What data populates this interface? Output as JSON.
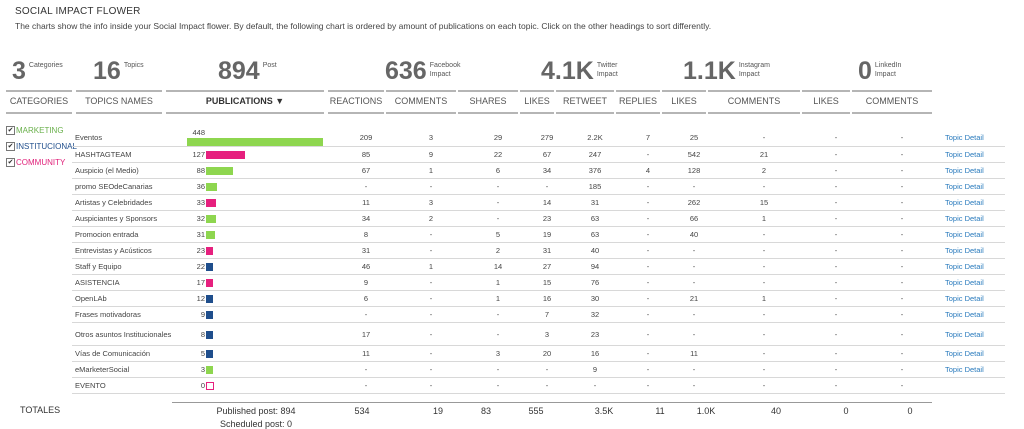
{
  "title": "SOCIAL IMPACT FLOWER",
  "subtitle": "The charts show the info inside your Social Impact flower. By default, the following chart is ordered by amount of publications on each topic. Click on the other headings to sort differently.",
  "stats": {
    "categories": {
      "num": "3",
      "label": "Categories"
    },
    "topics": {
      "num": "16",
      "label": "Topics"
    },
    "post": {
      "num": "894",
      "label": "Post"
    },
    "facebook": {
      "num": "636",
      "label": "Facebook Impact"
    },
    "twitter": {
      "num": "4.1K",
      "label": "Twitter Impact"
    },
    "instagram": {
      "num": "1.1K",
      "label": "Instagram Impact"
    },
    "linkedin": {
      "num": "0",
      "label": "LinkedIn Impact"
    }
  },
  "headers": {
    "categories": "CATEGORIES",
    "topics_names": "TOPICS NAMES",
    "publications": "PUBLICATIONS ▼",
    "reactions": "REACTIONS",
    "fb_comments": "COMMENTS",
    "shares": "SHARES",
    "tw_likes": "LIKES",
    "retweet": "RETWEET",
    "replies": "REPLIES",
    "ig_likes": "LIKES",
    "ig_comments": "COMMENTS",
    "li_likes": "LIKES",
    "li_comments": "COMMENTS"
  },
  "categories": [
    {
      "label": "MARKETING",
      "color": "#6ab04c",
      "checked": "✔"
    },
    {
      "label": "INSTITUCIONAL",
      "color": "#1f4e8c",
      "checked": "✔"
    },
    {
      "label": "COMMUNITY",
      "color": "#e0217a",
      "checked": "✔"
    }
  ],
  "colors": {
    "marketing": "#8ed64f",
    "institucional": "#1f4e8c",
    "community": "#e6207e",
    "link": "#2a7bbd"
  },
  "rows": [
    {
      "name": "Eventos",
      "pub": 448,
      "cat": "marketing",
      "reactions": "209",
      "comments": "3",
      "shares": "29",
      "tw_likes": "279",
      "retweet": "2.2K",
      "replies": "7",
      "ig_likes": "25",
      "ig_comments": "-",
      "li_likes": "-",
      "li_comments": "-",
      "link": "Topic Detail"
    },
    {
      "name": "HASHTAGTEAM",
      "pub": 127,
      "cat": "community",
      "reactions": "85",
      "comments": "9",
      "shares": "22",
      "tw_likes": "67",
      "retweet": "247",
      "replies": "-",
      "ig_likes": "542",
      "ig_comments": "21",
      "li_likes": "-",
      "li_comments": "-",
      "link": "Topic Detail"
    },
    {
      "name": "Auspicio (el Medio)",
      "pub": 88,
      "cat": "marketing",
      "reactions": "67",
      "comments": "1",
      "shares": "6",
      "tw_likes": "34",
      "retweet": "376",
      "replies": "4",
      "ig_likes": "128",
      "ig_comments": "2",
      "li_likes": "-",
      "li_comments": "-",
      "link": "Topic Detail"
    },
    {
      "name": "promo SEOdeCanarias",
      "pub": 36,
      "cat": "marketing",
      "reactions": "-",
      "comments": "-",
      "shares": "-",
      "tw_likes": "-",
      "retweet": "185",
      "replies": "-",
      "ig_likes": "-",
      "ig_comments": "-",
      "li_likes": "-",
      "li_comments": "-",
      "link": "Topic Detail"
    },
    {
      "name": "Artistas y Celebridades",
      "pub": 33,
      "cat": "community",
      "reactions": "11",
      "comments": "3",
      "shares": "-",
      "tw_likes": "14",
      "retweet": "31",
      "replies": "-",
      "ig_likes": "262",
      "ig_comments": "15",
      "li_likes": "-",
      "li_comments": "-",
      "link": "Topic Detail"
    },
    {
      "name": "Auspiciantes y Sponsors",
      "pub": 32,
      "cat": "marketing",
      "reactions": "34",
      "comments": "2",
      "shares": "-",
      "tw_likes": "23",
      "retweet": "63",
      "replies": "-",
      "ig_likes": "66",
      "ig_comments": "1",
      "li_likes": "-",
      "li_comments": "-",
      "link": "Topic Detail"
    },
    {
      "name": "Promocion entrada",
      "pub": 31,
      "cat": "marketing",
      "reactions": "8",
      "comments": "-",
      "shares": "5",
      "tw_likes": "19",
      "retweet": "63",
      "replies": "-",
      "ig_likes": "40",
      "ig_comments": "-",
      "li_likes": "-",
      "li_comments": "-",
      "link": "Topic Detail"
    },
    {
      "name": "Entrevistas y Acústicos",
      "pub": 23,
      "cat": "community",
      "reactions": "31",
      "comments": "-",
      "shares": "2",
      "tw_likes": "31",
      "retweet": "40",
      "replies": "-",
      "ig_likes": "-",
      "ig_comments": "-",
      "li_likes": "-",
      "li_comments": "-",
      "link": "Topic Detail"
    },
    {
      "name": "Staff y Equipo",
      "pub": 22,
      "cat": "institucional",
      "reactions": "46",
      "comments": "1",
      "shares": "14",
      "tw_likes": "27",
      "retweet": "94",
      "replies": "-",
      "ig_likes": "-",
      "ig_comments": "-",
      "li_likes": "-",
      "li_comments": "-",
      "link": "Topic Detail"
    },
    {
      "name": "ASISTENCIA",
      "pub": 17,
      "cat": "community",
      "reactions": "9",
      "comments": "-",
      "shares": "1",
      "tw_likes": "15",
      "retweet": "76",
      "replies": "-",
      "ig_likes": "-",
      "ig_comments": "-",
      "li_likes": "-",
      "li_comments": "-",
      "link": "Topic Detail"
    },
    {
      "name": "OpenLAb",
      "pub": 12,
      "cat": "institucional",
      "reactions": "6",
      "comments": "-",
      "shares": "1",
      "tw_likes": "16",
      "retweet": "30",
      "replies": "-",
      "ig_likes": "21",
      "ig_comments": "1",
      "li_likes": "-",
      "li_comments": "-",
      "link": "Topic Detail"
    },
    {
      "name": "Frases motivadoras",
      "pub": 9,
      "cat": "institucional",
      "reactions": "-",
      "comments": "-",
      "shares": "-",
      "tw_likes": "7",
      "retweet": "32",
      "replies": "-",
      "ig_likes": "-",
      "ig_comments": "-",
      "li_likes": "-",
      "li_comments": "-",
      "link": "Topic Detail"
    },
    {
      "name": "Otros asuntos Institucionales",
      "pub": 8,
      "cat": "institucional",
      "reactions": "17",
      "comments": "-",
      "shares": "-",
      "tw_likes": "3",
      "retweet": "23",
      "replies": "-",
      "ig_likes": "-",
      "ig_comments": "-",
      "li_likes": "-",
      "li_comments": "-",
      "link": "Topic Detail"
    },
    {
      "name": "Vías de Comunicación",
      "pub": 5,
      "cat": "institucional",
      "reactions": "11",
      "comments": "-",
      "shares": "3",
      "tw_likes": "20",
      "retweet": "16",
      "replies": "-",
      "ig_likes": "11",
      "ig_comments": "-",
      "li_likes": "-",
      "li_comments": "-",
      "link": "Topic Detail"
    },
    {
      "name": "eMarketerSocial",
      "pub": 3,
      "cat": "marketing",
      "reactions": "-",
      "comments": "-",
      "shares": "-",
      "tw_likes": "-",
      "retweet": "9",
      "replies": "-",
      "ig_likes": "-",
      "ig_comments": "-",
      "li_likes": "-",
      "li_comments": "-",
      "link": "Topic Detail"
    },
    {
      "name": "EVENTO",
      "pub": 0,
      "cat": "community",
      "reactions": "-",
      "comments": "-",
      "shares": "-",
      "tw_likes": "-",
      "retweet": "-",
      "replies": "-",
      "ig_likes": "-",
      "ig_comments": "-",
      "li_likes": "-",
      "li_comments": "-",
      "link": ""
    }
  ],
  "totals": {
    "label": "TOTALES",
    "published": "Published post: 894",
    "scheduled": "Scheduled post: 0",
    "reactions": "534",
    "comments": "19",
    "shares": "83",
    "tw_likes": "555",
    "retweet": "3.5K",
    "replies": "11",
    "ig_likes": "1.0K",
    "ig_comments": "40",
    "li_likes": "0",
    "li_comments": "0"
  }
}
